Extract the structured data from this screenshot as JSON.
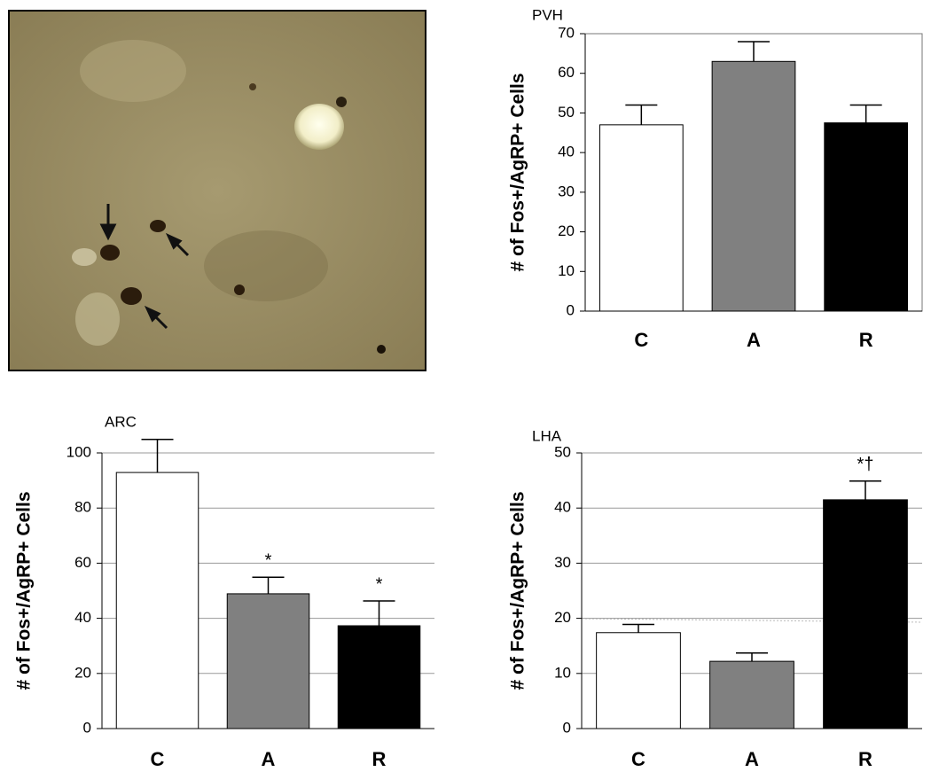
{
  "chart_data": [
    {
      "type": "bar",
      "title": "PVH",
      "y_label": "# of Fos+/AgRP+ Cells",
      "categories": [
        "C",
        "A",
        "R"
      ],
      "values": [
        47,
        63,
        47.5
      ],
      "errors": [
        5,
        5,
        4.5
      ],
      "colors": [
        "#ffffff",
        "#808080",
        "#000000"
      ],
      "ylim": [
        0,
        70
      ],
      "yticks": [
        0,
        10,
        20,
        30,
        40,
        50,
        60,
        70
      ],
      "grid": false
    },
    {
      "type": "bar",
      "title": "ARC",
      "y_label": "# of Fos+/AgRP+ Cells",
      "categories": [
        "C",
        "A",
        "R"
      ],
      "values": [
        92.9,
        48.9,
        37.3
      ],
      "errors": [
        12,
        6,
        9
      ],
      "colors": [
        "#ffffff",
        "#808080",
        "#000000"
      ],
      "annotations": [
        null,
        "*",
        "*"
      ],
      "ylim": [
        0,
        100
      ],
      "yticks": [
        0,
        20,
        40,
        60,
        80,
        100
      ],
      "grid": true
    },
    {
      "type": "bar",
      "title": "LHA",
      "y_label": "# of Fos+/AgRP+ Cells",
      "categories": [
        "C",
        "A",
        "R"
      ],
      "values": [
        17.4,
        12.2,
        41.5
      ],
      "errors": [
        1.5,
        1.5,
        3.4
      ],
      "colors": [
        "#ffffff",
        "#808080",
        "#000000"
      ],
      "annotations": [
        null,
        null,
        "*†"
      ],
      "ylim": [
        0,
        50
      ],
      "yticks": [
        0,
        10,
        20,
        30,
        40,
        50
      ],
      "grid": true
    }
  ]
}
